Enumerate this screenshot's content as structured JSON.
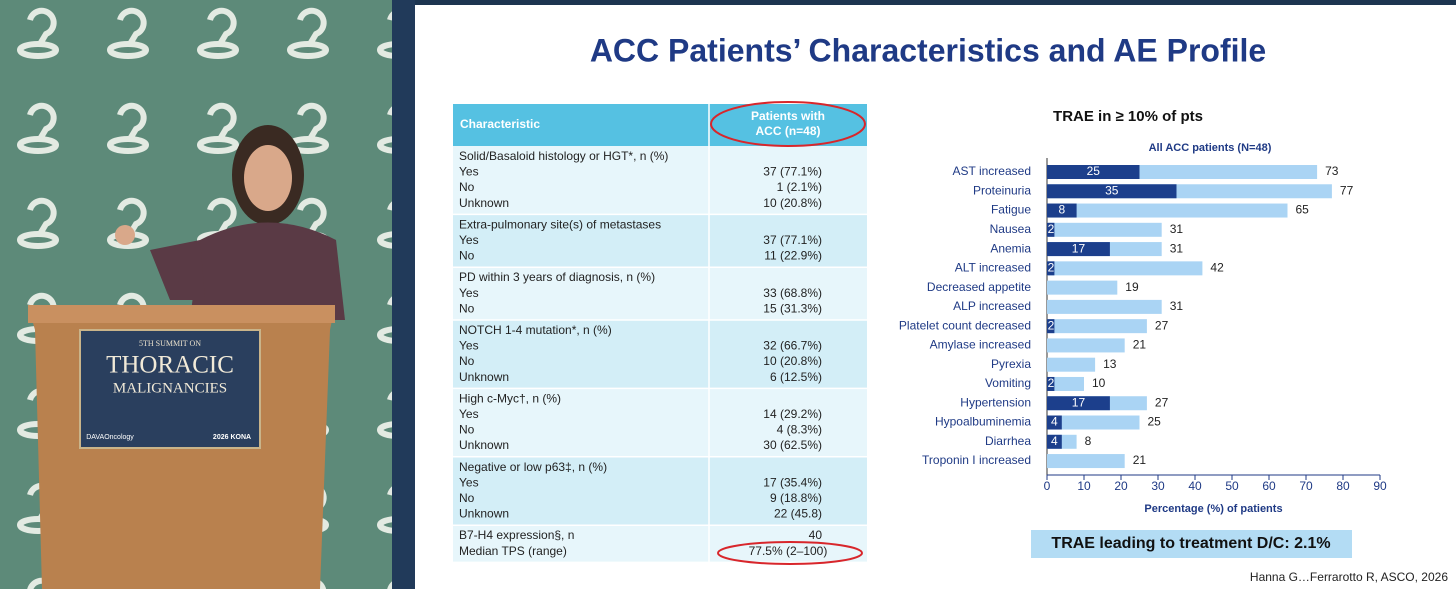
{
  "podium": {
    "line1": "5TH SUMMIT ON",
    "line2": "THORACIC",
    "line3": "MALIGNANCIES",
    "logo": "DAVAOncology",
    "event": "2026 KONA"
  },
  "slide": {
    "title": "ACC Patients’ Characteristics and AE Profile",
    "citation": "Hanna G…Ferrarotto R, ASCO, 2026",
    "note": "TRAE leading to treatment D/C: 2.1%"
  },
  "table": {
    "header": [
      "Characteristic",
      [
        "Patients with",
        "ACC (n=48)"
      ]
    ],
    "groups": [
      {
        "label": "Solid/Basaloid histology or HGT*, n (%)",
        "rows": [
          [
            "Yes",
            "37 (77.1%)"
          ],
          [
            "No",
            "1 (2.1%)"
          ],
          [
            "Unknown",
            "10 (20.8%)"
          ]
        ]
      },
      {
        "label": "Extra-pulmonary site(s) of metastases",
        "rows": [
          [
            "Yes",
            "37 (77.1%)"
          ],
          [
            "No",
            "11 (22.9%)"
          ]
        ]
      },
      {
        "label": "PD within 3 years of diagnosis, n (%)",
        "rows": [
          [
            "Yes",
            "33 (68.8%)"
          ],
          [
            "No",
            "15 (31.3%)"
          ]
        ]
      },
      {
        "label": "NOTCH 1-4 mutation*, n (%)",
        "rows": [
          [
            "Yes",
            "32 (66.7%)"
          ],
          [
            "No",
            "10 (20.8%)"
          ],
          [
            "Unknown",
            "6 (12.5%)"
          ]
        ]
      },
      {
        "label": "High c-Myc†, n (%)",
        "rows": [
          [
            "Yes",
            "14 (29.2%)"
          ],
          [
            "No",
            "4 (8.3%)"
          ],
          [
            "Unknown",
            "30 (62.5%)"
          ]
        ]
      },
      {
        "label": "Negative or low p63‡, n (%)",
        "rows": [
          [
            "Yes",
            "17 (35.4%)"
          ],
          [
            "No",
            "9 (18.8%)"
          ],
          [
            "Unknown",
            "22 (45.8)"
          ]
        ]
      },
      {
        "label": "B7-H4 expression§, n",
        "value": "40",
        "rows": [
          [
            "Median TPS (range)",
            "77.5% (2–100)"
          ]
        ]
      }
    ]
  },
  "chart_data": {
    "type": "bar",
    "orientation": "horizontal",
    "title": "TRAE in ≥ 10% of pts",
    "subtitle": "All ACC patients (N=48)",
    "x_label": "Percentage (%) of patients",
    "categories": [
      "AST increased",
      "Proteinuria",
      "Fatigue",
      "Nausea",
      "Anemia",
      "ALT increased",
      "Decreased appetite",
      "ALP increased",
      "Platelet count decreased",
      "Amylase increased",
      "Pyrexia",
      "Vomiting",
      "Hypertension",
      "Hypoalbuminemia",
      "Diarrhea",
      "Troponin I increased"
    ],
    "series": [
      {
        "color": "#aad4f4",
        "values": [
          73,
          77,
          65,
          31,
          31,
          42,
          19,
          31,
          27,
          21,
          13,
          10,
          27,
          25,
          8,
          21
        ]
      },
      {
        "color": "#1c3f8c",
        "values": [
          25,
          35,
          8,
          2,
          17,
          2,
          null,
          null,
          2,
          null,
          null,
          2,
          17,
          4,
          4,
          null
        ]
      }
    ],
    "xlim": [
      0,
      90
    ],
    "xticks": [
      0,
      10,
      20,
      30,
      40,
      50,
      60,
      70,
      80,
      90
    ]
  }
}
